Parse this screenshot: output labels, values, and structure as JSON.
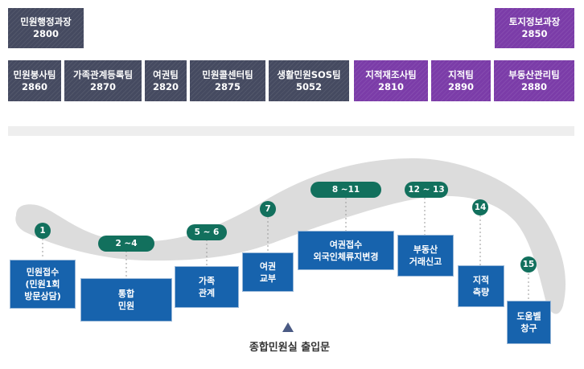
{
  "depts": {
    "civil_admin": {
      "name": "민원행정과장",
      "ext": "2800"
    },
    "land_info": {
      "name": "토지정보과장",
      "ext": "2850"
    }
  },
  "teams": [
    {
      "name": "민원봉사팀",
      "ext": "2860",
      "color": "#454a60"
    },
    {
      "name": "가족관계등록팀",
      "ext": "2870",
      "color": "#454a60"
    },
    {
      "name": "여권팀",
      "ext": "2820",
      "color": "#454a60"
    },
    {
      "name": "민원콜센터팀",
      "ext": "2875",
      "color": "#454a60"
    },
    {
      "name": "생활민원SOS팀",
      "ext": "5052",
      "color": "#454a60"
    },
    {
      "name": "지적재조사팀",
      "ext": "2810",
      "color": "#7b3ca8"
    },
    {
      "name": "지적팀",
      "ext": "2890",
      "color": "#7b3ca8"
    },
    {
      "name": "부동산관리팀",
      "ext": "2880",
      "color": "#7b3ca8"
    }
  ],
  "windows": [
    {
      "num": "1",
      "line1": "민원접수",
      "line2": "(민원1회",
      "line3": "방문상담)"
    },
    {
      "num": "2 ~4",
      "line1": "통합",
      "line2": "민원"
    },
    {
      "num": "5 ~ 6",
      "line1": "가족",
      "line2": "관계"
    },
    {
      "num": "7",
      "line1": "여권",
      "line2": "교부"
    },
    {
      "num": "8 ~11",
      "line1": "여권접수",
      "line2": "외국인체류지변경"
    },
    {
      "num": "12 ~ 13",
      "line1": "부동산",
      "line2": "거래신고"
    },
    {
      "num": "14",
      "line1": "지적",
      "line2": "측량"
    },
    {
      "num": "15",
      "line1": "도움벨",
      "line2": "창구"
    }
  ],
  "exit": {
    "label": "종합민원실 출입문"
  },
  "colors": {
    "road": "#dcdcdc",
    "number_badge": "#12705d",
    "window_box": "#1763ad",
    "team_dark": "#454a60",
    "team_purple": "#7b3ca8"
  }
}
